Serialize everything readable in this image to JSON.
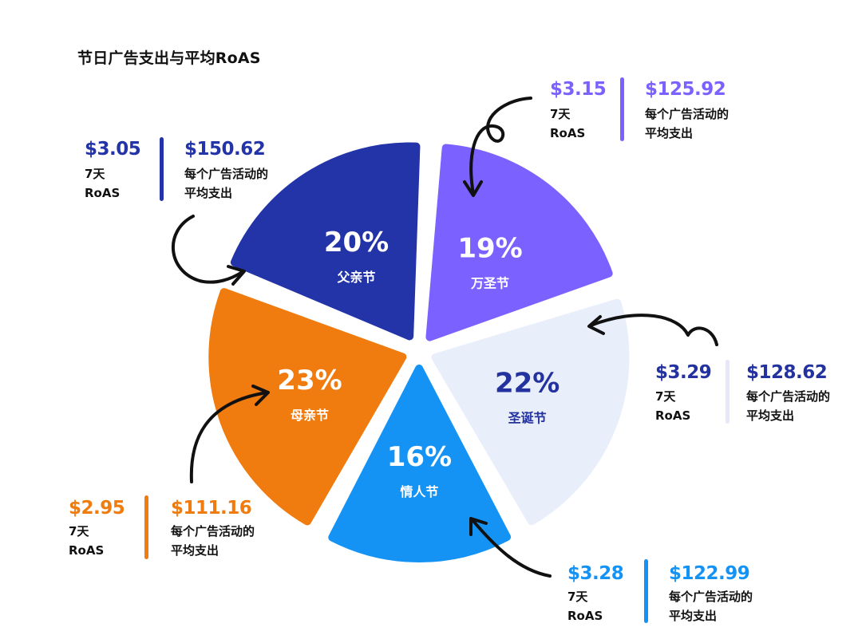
{
  "title": "节日广告支出与平均RoAS",
  "roas_label_line1": "7天",
  "roas_label_line2": "RoAS",
  "spend_label_line1": "每个广告活动的",
  "spend_label_line2": "平均支出",
  "chart_data": {
    "type": "pie",
    "title": "节日广告支出与平均RoAS",
    "slices": [
      {
        "label": "万圣节",
        "share": 19,
        "share_label": "19%",
        "roas": "$3.15",
        "avg_spend": "$125.92",
        "color": "#7B61FF",
        "text_color": "#ffffff"
      },
      {
        "label": "圣诞节",
        "share": 22,
        "share_label": "22%",
        "roas": "$3.29",
        "avg_spend": "$128.62",
        "color": "#E9EEFB",
        "text_color": "#23329E"
      },
      {
        "label": "情人节",
        "share": 16,
        "share_label": "16%",
        "roas": "$3.28",
        "avg_spend": "$122.99",
        "color": "#1493F5",
        "text_color": "#ffffff"
      },
      {
        "label": "母亲节",
        "share": 23,
        "share_label": "23%",
        "roas": "$2.95",
        "avg_spend": "$111.16",
        "color": "#F07B0E",
        "text_color": "#ffffff"
      },
      {
        "label": "父亲节",
        "share": 20,
        "share_label": "20%",
        "roas": "$3.05",
        "avg_spend": "$150.62",
        "color": "#2333A8",
        "text_color": "#ffffff"
      }
    ]
  }
}
